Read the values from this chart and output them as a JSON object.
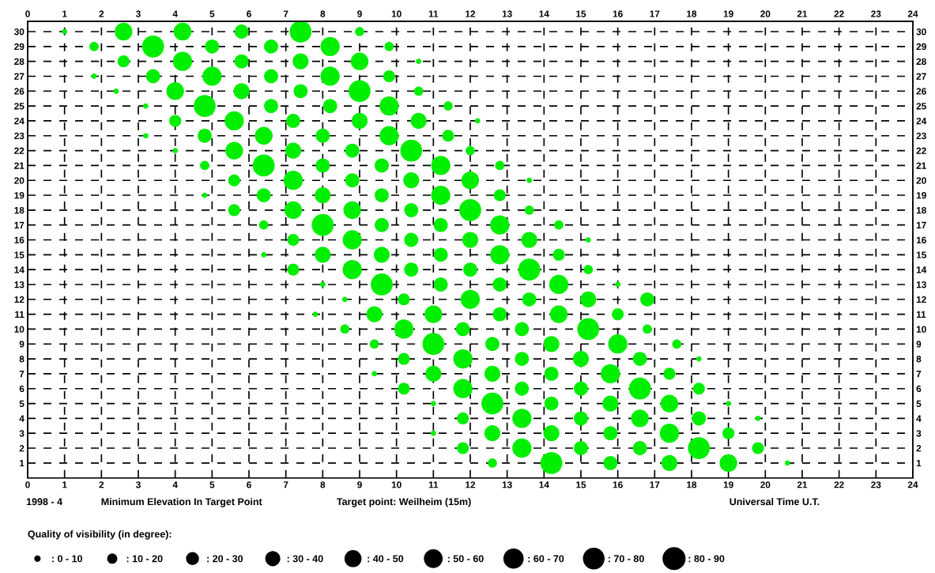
{
  "chart_data": {
    "type": "bubble",
    "xlim": [
      0,
      24
    ],
    "xticks": [
      0,
      1,
      2,
      3,
      4,
      5,
      6,
      7,
      8,
      9,
      10,
      11,
      12,
      13,
      14,
      15,
      16,
      17,
      18,
      19,
      20,
      21,
      22,
      23,
      24
    ],
    "x2lim": [
      0,
      24
    ],
    "x2ticks": [
      0,
      1,
      2,
      3,
      4,
      5,
      6,
      7,
      8,
      9,
      10,
      11,
      12,
      13,
      14,
      15,
      16,
      17,
      18,
      19,
      20,
      21,
      22,
      23,
      24
    ],
    "ylim": [
      0,
      30.7
    ],
    "yticks": [
      1,
      2,
      3,
      4,
      5,
      6,
      7,
      8,
      9,
      10,
      11,
      12,
      13,
      14,
      15,
      16,
      17,
      18,
      19,
      20,
      21,
      22,
      23,
      24,
      25,
      26,
      27,
      28,
      29,
      30
    ],
    "y2lim": [
      0,
      30.7
    ],
    "y2ticks": [
      1,
      2,
      3,
      4,
      5,
      6,
      7,
      8,
      9,
      10,
      11,
      12,
      13,
      14,
      15,
      16,
      17,
      18,
      19,
      20,
      21,
      22,
      23,
      24,
      25,
      26,
      27,
      28,
      29,
      30
    ],
    "grid": true,
    "marker": "circle",
    "legend_title": "Quality of visibility (in degree):",
    "size_legend": [
      {
        "value": 5,
        "label": ": 0 - 10"
      },
      {
        "value": 15,
        "label": ": 10 - 20"
      },
      {
        "value": 25,
        "label": ": 20 - 30"
      },
      {
        "value": 35,
        "label": ": 30 - 40"
      },
      {
        "value": 45,
        "label": ": 40 - 50"
      },
      {
        "value": 55,
        "label": ": 50 - 60"
      },
      {
        "value": 65,
        "label": ": 60 - 70"
      },
      {
        "value": 75,
        "label": ": 70 - 80"
      },
      {
        "value": 85,
        "label": ": 80 - 90"
      }
    ],
    "annotations": [
      "1998 - 4",
      "Minimum Elevation In Target Point",
      "Target point: Weilheim (15m)",
      "Universal Time U.T."
    ],
    "series": [
      {
        "color": "#00ee00",
        "x": [
          1.0,
          2.6,
          4.2,
          5.8,
          7.4,
          9.0,
          1.8,
          3.4,
          5.0,
          6.6,
          8.2,
          9.8,
          2.6,
          4.2,
          5.8,
          7.4,
          9.0,
          10.6,
          1.8,
          3.4,
          5.0,
          6.6,
          8.2,
          9.8,
          2.4,
          4.0,
          5.8,
          7.4,
          9.0,
          10.6,
          3.2,
          4.8,
          6.6,
          8.2,
          9.8,
          11.4,
          4.0,
          5.6,
          7.2,
          9.0,
          10.6,
          12.2,
          3.2,
          4.8,
          6.4,
          8.0,
          9.8,
          11.4,
          4.0,
          5.6,
          7.2,
          8.8,
          10.4,
          12.0,
          4.8,
          6.4,
          8.0,
          9.6,
          11.2,
          12.8,
          5.6,
          7.2,
          8.8,
          10.4,
          12.0,
          13.6,
          4.8,
          6.4,
          8.0,
          9.6,
          11.2,
          12.8,
          5.6,
          7.2,
          8.8,
          10.4,
          12.0,
          13.6,
          6.4,
          8.0,
          9.6,
          11.2,
          12.8,
          14.4,
          7.2,
          8.8,
          10.4,
          12.0,
          13.6,
          15.2,
          6.4,
          8.0,
          9.6,
          11.2,
          12.8,
          14.4,
          7.2,
          8.8,
          10.4,
          12.0,
          13.6,
          15.2,
          8.0,
          9.6,
          11.2,
          12.8,
          14.4,
          16.0,
          8.6,
          10.2,
          12.0,
          13.6,
          15.2,
          16.8,
          7.8,
          9.4,
          11.0,
          12.8,
          14.4,
          16.0,
          8.6,
          10.2,
          11.8,
          13.4,
          15.2,
          16.8,
          9.4,
          11.0,
          12.6,
          14.2,
          16.0,
          17.6,
          10.2,
          11.8,
          13.4,
          15.0,
          16.6,
          18.2,
          9.4,
          11.0,
          12.6,
          14.2,
          15.8,
          17.4,
          10.2,
          11.8,
          13.4,
          15.0,
          16.6,
          18.2,
          11.0,
          12.6,
          14.2,
          15.8,
          17.4,
          19.0,
          11.8,
          13.4,
          15.0,
          16.6,
          18.2,
          19.8,
          11.0,
          12.6,
          14.2,
          15.8,
          17.4,
          19.0,
          11.8,
          13.4,
          15.0,
          16.6,
          18.2,
          19.8,
          12.6,
          14.2,
          15.8,
          17.4,
          19.0,
          20.6
        ],
        "values": [
          30,
          30,
          30,
          30,
          30,
          30,
          29,
          29,
          29,
          29,
          29,
          29,
          28,
          28,
          28,
          28,
          28,
          28,
          27,
          27,
          27,
          27,
          27,
          27,
          26,
          26,
          26,
          26,
          26,
          26,
          25,
          25,
          25,
          25,
          25,
          25,
          24,
          24,
          24,
          24,
          24,
          24,
          23,
          23,
          23,
          23,
          23,
          23,
          22,
          22,
          22,
          22,
          22,
          22,
          21,
          21,
          21,
          21,
          21,
          21,
          20,
          20,
          20,
          20,
          20,
          20,
          19,
          19,
          19,
          19,
          19,
          19,
          18,
          18,
          18,
          18,
          18,
          18,
          17,
          17,
          17,
          17,
          17,
          17,
          16,
          16,
          16,
          16,
          16,
          16,
          15,
          15,
          15,
          15,
          15,
          15,
          14,
          14,
          14,
          14,
          14,
          14,
          13,
          13,
          13,
          13,
          13,
          13,
          12,
          12,
          12,
          12,
          12,
          12,
          11,
          11,
          11,
          11,
          11,
          11,
          10,
          10,
          10,
          10,
          10,
          10,
          9,
          9,
          9,
          9,
          9,
          9,
          8,
          8,
          8,
          8,
          8,
          8,
          7,
          7,
          7,
          7,
          7,
          7,
          6,
          6,
          6,
          6,
          6,
          6,
          5,
          5,
          5,
          5,
          5,
          5,
          4,
          4,
          4,
          4,
          4,
          4,
          3,
          3,
          3,
          3,
          3,
          3,
          2,
          2,
          2,
          2,
          2,
          2,
          1,
          1,
          1,
          1,
          1,
          1
        ],
        "sizes": [
          5,
          55,
          55,
          35,
          85,
          15,
          15,
          85,
          35,
          35,
          65,
          15,
          25,
          65,
          35,
          45,
          55,
          5,
          5,
          35,
          65,
          35,
          65,
          25,
          5,
          55,
          45,
          35,
          85,
          15,
          5,
          85,
          35,
          35,
          65,
          15,
          25,
          65,
          35,
          45,
          45,
          5,
          5,
          35,
          55,
          35,
          65,
          25,
          5,
          55,
          45,
          35,
          85,
          15,
          15,
          85,
          35,
          35,
          65,
          15,
          25,
          65,
          35,
          45,
          55,
          5,
          5,
          35,
          45,
          35,
          65,
          25,
          25,
          55,
          55,
          35,
          85,
          15,
          15,
          85,
          35,
          35,
          65,
          15,
          25,
          65,
          35,
          45,
          45,
          5,
          5,
          45,
          45,
          35,
          65,
          25,
          25,
          65,
          35,
          35,
          85,
          15,
          5,
          85,
          35,
          35,
          65,
          5,
          5,
          25,
          65,
          35,
          45,
          35,
          5,
          45,
          55,
          35,
          55,
          25,
          15,
          65,
          35,
          35,
          85,
          15,
          15,
          85,
          35,
          45,
          65,
          15,
          25,
          65,
          35,
          45,
          35,
          5,
          5,
          45,
          45,
          35,
          65,
          25,
          25,
          65,
          35,
          35,
          85,
          25,
          5,
          85,
          35,
          45,
          55,
          5,
          25,
          65,
          35,
          55,
          35,
          5,
          5,
          45,
          45,
          35,
          65,
          25,
          25,
          65,
          35,
          35,
          85,
          25,
          15,
          85,
          35,
          45,
          55,
          5
        ]
      }
    ]
  }
}
